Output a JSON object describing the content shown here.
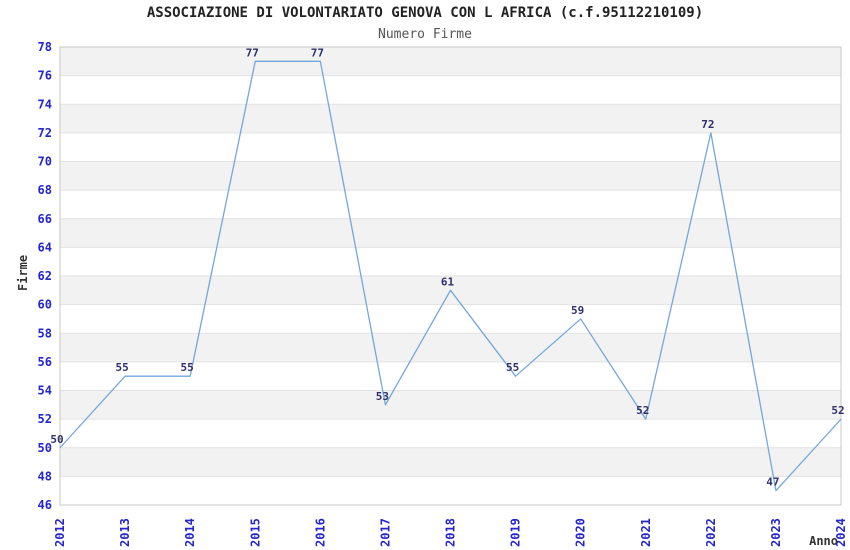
{
  "header": {
    "title": "ASSOCIAZIONE DI VOLONTARIATO GENOVA CON L AFRICA (c.f.95112210109)",
    "subtitle": "Numero Firme"
  },
  "chart_data": {
    "type": "line",
    "title": "ASSOCIAZIONE DI VOLONTARIATO GENOVA CON L AFRICA (c.f.95112210109)",
    "subtitle": "Numero Firme",
    "xlabel": "Anno",
    "ylabel": "Firme",
    "categories": [
      "2012",
      "2013",
      "2014",
      "2015",
      "2016",
      "2017",
      "2018",
      "2019",
      "2020",
      "2021",
      "2022",
      "2023",
      "2024"
    ],
    "values": [
      50,
      55,
      55,
      77,
      77,
      53,
      61,
      55,
      59,
      52,
      72,
      47,
      52
    ],
    "ylim": [
      46,
      78
    ],
    "ytick_step": 2,
    "grid": "horizontal-bands",
    "legend_position": "none",
    "colors": {
      "line": "#74a7dc",
      "tick_label": "#2525cf",
      "point_label": "#30306e",
      "band": "#f2f2f2",
      "grid_line": "#e2e2e2",
      "plot_border": "#c8c8c8",
      "axis_title": "#333333",
      "background": "#ffffff"
    }
  }
}
